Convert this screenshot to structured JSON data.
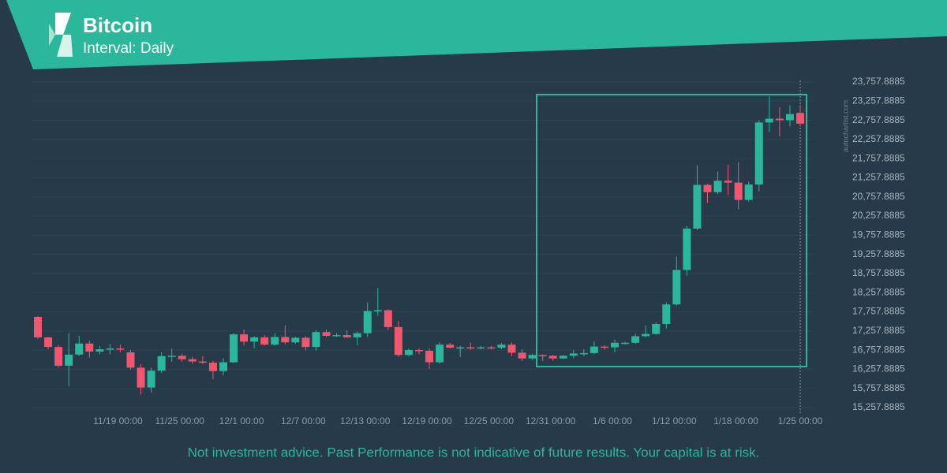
{
  "chart_data": {
    "type": "candlestick",
    "title": "Bitcoin",
    "subtitle": "Interval: Daily",
    "footnote": "Not investment advice. Past Performance is not indicative of future results. Your capital is at risk.",
    "watermark": "autochartist.com",
    "up_color": "#2bb79b",
    "down_color": "#f0566e",
    "x": [
      "11/12",
      "11/13",
      "11/14",
      "11/15",
      "11/16",
      "11/17",
      "11/18",
      "11/19",
      "11/20",
      "11/21",
      "11/22",
      "11/23",
      "11/24",
      "11/25",
      "11/26",
      "11/27",
      "11/28",
      "11/29",
      "11/30",
      "12/1",
      "12/2",
      "12/3",
      "12/4",
      "12/5",
      "12/6",
      "12/7",
      "12/8",
      "12/9",
      "12/10",
      "12/11",
      "12/12",
      "12/13",
      "12/14",
      "12/15",
      "12/16",
      "12/17",
      "12/18",
      "12/19",
      "12/20",
      "12/21",
      "12/22",
      "12/23",
      "12/24",
      "12/25",
      "12/26",
      "12/27",
      "12/28",
      "12/29",
      "12/30",
      "12/31",
      "1/1",
      "1/2",
      "1/3",
      "1/4",
      "1/5",
      "1/6",
      "1/7",
      "1/8",
      "1/9",
      "1/10",
      "1/11",
      "1/12",
      "1/13",
      "1/14",
      "1/15",
      "1/16",
      "1/17",
      "1/18",
      "1/19",
      "1/20",
      "1/21",
      "1/22",
      "1/23",
      "1/24",
      "1/25"
    ],
    "open": [
      17625,
      17090,
      16840,
      16350,
      16640,
      16930,
      16720,
      16780,
      16800,
      16700,
      16300,
      15780,
      16220,
      16600,
      16610,
      16520,
      16460,
      16430,
      16210,
      16440,
      17170,
      16980,
      17090,
      16900,
      17100,
      16960,
      17080,
      16840,
      17230,
      17130,
      17150,
      17090,
      17200,
      17780,
      17800,
      17360,
      16630,
      16760,
      16740,
      16440,
      16900,
      16820,
      16830,
      16800,
      16830,
      16820,
      16900,
      16690,
      16540,
      16630,
      16610,
      16540,
      16610,
      16670,
      16680,
      16850,
      16830,
      16940,
      16950,
      17120,
      17180,
      17440,
      17950,
      18850,
      19930,
      21070,
      20880,
      21180,
      21130,
      20680,
      21080,
      22700,
      22800,
      22760,
      22950
    ],
    "high": [
      17650,
      17100,
      16900,
      17210,
      17130,
      17000,
      16860,
      16920,
      16900,
      16760,
      16400,
      16300,
      16700,
      16800,
      16670,
      16580,
      16600,
      16480,
      16550,
      17200,
      17300,
      17120,
      17150,
      17200,
      17400,
      17100,
      17120,
      17280,
      17300,
      17200,
      17270,
      17240,
      18000,
      18380,
      17820,
      17520,
      16800,
      16800,
      16800,
      16960,
      16950,
      16870,
      16950,
      16870,
      16870,
      16940,
      16960,
      16780,
      16660,
      16650,
      16630,
      16630,
      16760,
      16780,
      16980,
      16880,
      17030,
      16980,
      17180,
      17400,
      17480,
      18000,
      19200,
      20000,
      21570,
      21100,
      21420,
      21600,
      21660,
      21150,
      22760,
      23380,
      23100,
      23150,
      23160
    ],
    "low": [
      17050,
      16780,
      16300,
      15810,
      16600,
      16560,
      16650,
      16650,
      16700,
      16250,
      15600,
      15650,
      16170,
      16450,
      16450,
      16400,
      16390,
      16000,
      16100,
      16430,
      16880,
      16800,
      16880,
      16880,
      16900,
      16920,
      16750,
      16740,
      17100,
      17100,
      17080,
      16880,
      17100,
      17660,
      17280,
      16580,
      16600,
      16650,
      16270,
      16400,
      16800,
      16580,
      16770,
      16780,
      16780,
      16780,
      16600,
      16470,
      16500,
      16470,
      16480,
      16530,
      16550,
      16600,
      16650,
      16770,
      16700,
      16900,
      16920,
      17100,
      17160,
      17320,
      17920,
      18700,
      19890,
      20600,
      20830,
      20800,
      20440,
      20640,
      20900,
      22450,
      22340,
      22600,
      22600
    ],
    "close": [
      17090,
      16840,
      16350,
      16640,
      16930,
      16720,
      16780,
      16800,
      16790,
      16300,
      15780,
      16220,
      16600,
      16610,
      16520,
      16460,
      16430,
      16210,
      16440,
      17170,
      16980,
      17090,
      16900,
      17100,
      16960,
      17080,
      16840,
      17230,
      17130,
      17150,
      17090,
      17200,
      17780,
      17800,
      17360,
      16630,
      16760,
      16740,
      16440,
      16900,
      16820,
      16830,
      16800,
      16830,
      16820,
      16900,
      16690,
      16540,
      16630,
      16610,
      16540,
      16610,
      16670,
      16680,
      16850,
      16830,
      16950,
      16950,
      17120,
      17180,
      17440,
      17950,
      18850,
      19930,
      21070,
      20880,
      21180,
      21130,
      20680,
      21080,
      22700,
      22800,
      22760,
      22920,
      22670
    ],
    "ylim": [
      15093,
      23943
    ],
    "yticks": [
      {
        "value": 15257.8885,
        "label": "15,257.8885"
      },
      {
        "value": 15757.8885,
        "label": "15,757.8885"
      },
      {
        "value": 16257.8885,
        "label": "16,257.8885"
      },
      {
        "value": 16757.8885,
        "label": "16,757.8885"
      },
      {
        "value": 17257.8885,
        "label": "17,257.8885"
      },
      {
        "value": 17757.8885,
        "label": "17,757.8885"
      },
      {
        "value": 18257.8885,
        "label": "18,257.8885"
      },
      {
        "value": 18757.8885,
        "label": "18,757.8885"
      },
      {
        "value": 19257.8885,
        "label": "19,257.8885"
      },
      {
        "value": 19757.8885,
        "label": "19,757.8885"
      },
      {
        "value": 20257.8885,
        "label": "20,257.8885"
      },
      {
        "value": 20757.8885,
        "label": "20,757.8885"
      },
      {
        "value": 21257.8885,
        "label": "21,257.8885"
      },
      {
        "value": 21757.8885,
        "label": "21,757.8885"
      },
      {
        "value": 22257.8885,
        "label": "22,257.8885"
      },
      {
        "value": 22757.8885,
        "label": "22,757.8885"
      },
      {
        "value": 23257.8885,
        "label": "23,257.8885"
      },
      {
        "value": 23757.8885,
        "label": "23,757.8885"
      }
    ],
    "xticks": [
      {
        "value": "11/19",
        "label": "11/19 00:00"
      },
      {
        "value": "11/25",
        "label": "11/25 00:00"
      },
      {
        "value": "12/1",
        "label": "12/1 00:00"
      },
      {
        "value": "12/7",
        "label": "12/7 00:00"
      },
      {
        "value": "12/13",
        "label": "12/13 00:00"
      },
      {
        "value": "12/19",
        "label": "12/19 00:00"
      },
      {
        "value": "12/25",
        "label": "12/25 00:00"
      },
      {
        "value": "12/31",
        "label": "12/31 00:00"
      },
      {
        "value": "1/6",
        "label": "1/6 00:00"
      },
      {
        "value": "1/12",
        "label": "1/12 00:00"
      },
      {
        "value": "1/18",
        "label": "1/18 00:00"
      },
      {
        "value": "1/25",
        "label": "1/25 00:00"
      }
    ],
    "grid": true
  }
}
